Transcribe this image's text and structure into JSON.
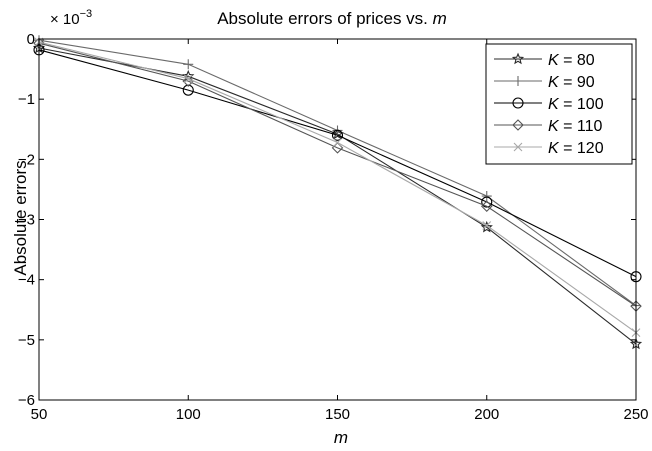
{
  "chart_data": {
    "type": "line",
    "title_prefix": "Absolute errors of prices vs. ",
    "title_var": "m",
    "xlabel": "m",
    "ylabel": "Absolute errors",
    "y_scale_label": "× 10",
    "y_scale_exponent": "−3",
    "x": [
      50,
      100,
      150,
      200,
      250
    ],
    "xlim": [
      50,
      250
    ],
    "ylim": [
      -6,
      0
    ],
    "x_ticks": [
      50,
      100,
      150,
      200,
      250
    ],
    "y_ticks": [
      0,
      -1,
      -2,
      -3,
      -4,
      -5,
      -6
    ],
    "x_tick_labels": [
      "50",
      "100",
      "150",
      "200",
      "250"
    ],
    "y_tick_labels": [
      "0",
      "−1",
      "−2",
      "−3",
      "−4",
      "−5",
      "−6"
    ],
    "grid": false,
    "legend_position": "top-right",
    "series": [
      {
        "name": "K = 80",
        "legend_var": "K",
        "legend_value": " = 80",
        "marker": "star",
        "color": "#2a2a2a",
        "values": [
          -0.15,
          -0.62,
          -1.58,
          -3.13,
          -5.07
        ]
      },
      {
        "name": "K = 90",
        "legend_var": "K",
        "legend_value": " = 90",
        "marker": "plus",
        "color": "#6a6a6a",
        "values": [
          -0.02,
          -0.42,
          -1.52,
          -2.61,
          -4.43
        ]
      },
      {
        "name": "K = 100",
        "legend_var": "K",
        "legend_value": " = 100",
        "marker": "circle",
        "color": "#000000",
        "values": [
          -0.18,
          -0.85,
          -1.6,
          -2.71,
          -3.95
        ]
      },
      {
        "name": "K = 110",
        "legend_var": "K",
        "legend_value": " = 110",
        "marker": "diamond",
        "color": "#555555",
        "values": [
          -0.07,
          -0.7,
          -1.81,
          -2.78,
          -4.44
        ]
      },
      {
        "name": "K = 120",
        "legend_var": "K",
        "legend_value": " = 120",
        "marker": "x",
        "color": "#a8a8a8",
        "values": [
          -0.05,
          -0.66,
          -1.72,
          -3.1,
          -4.88
        ]
      }
    ]
  }
}
